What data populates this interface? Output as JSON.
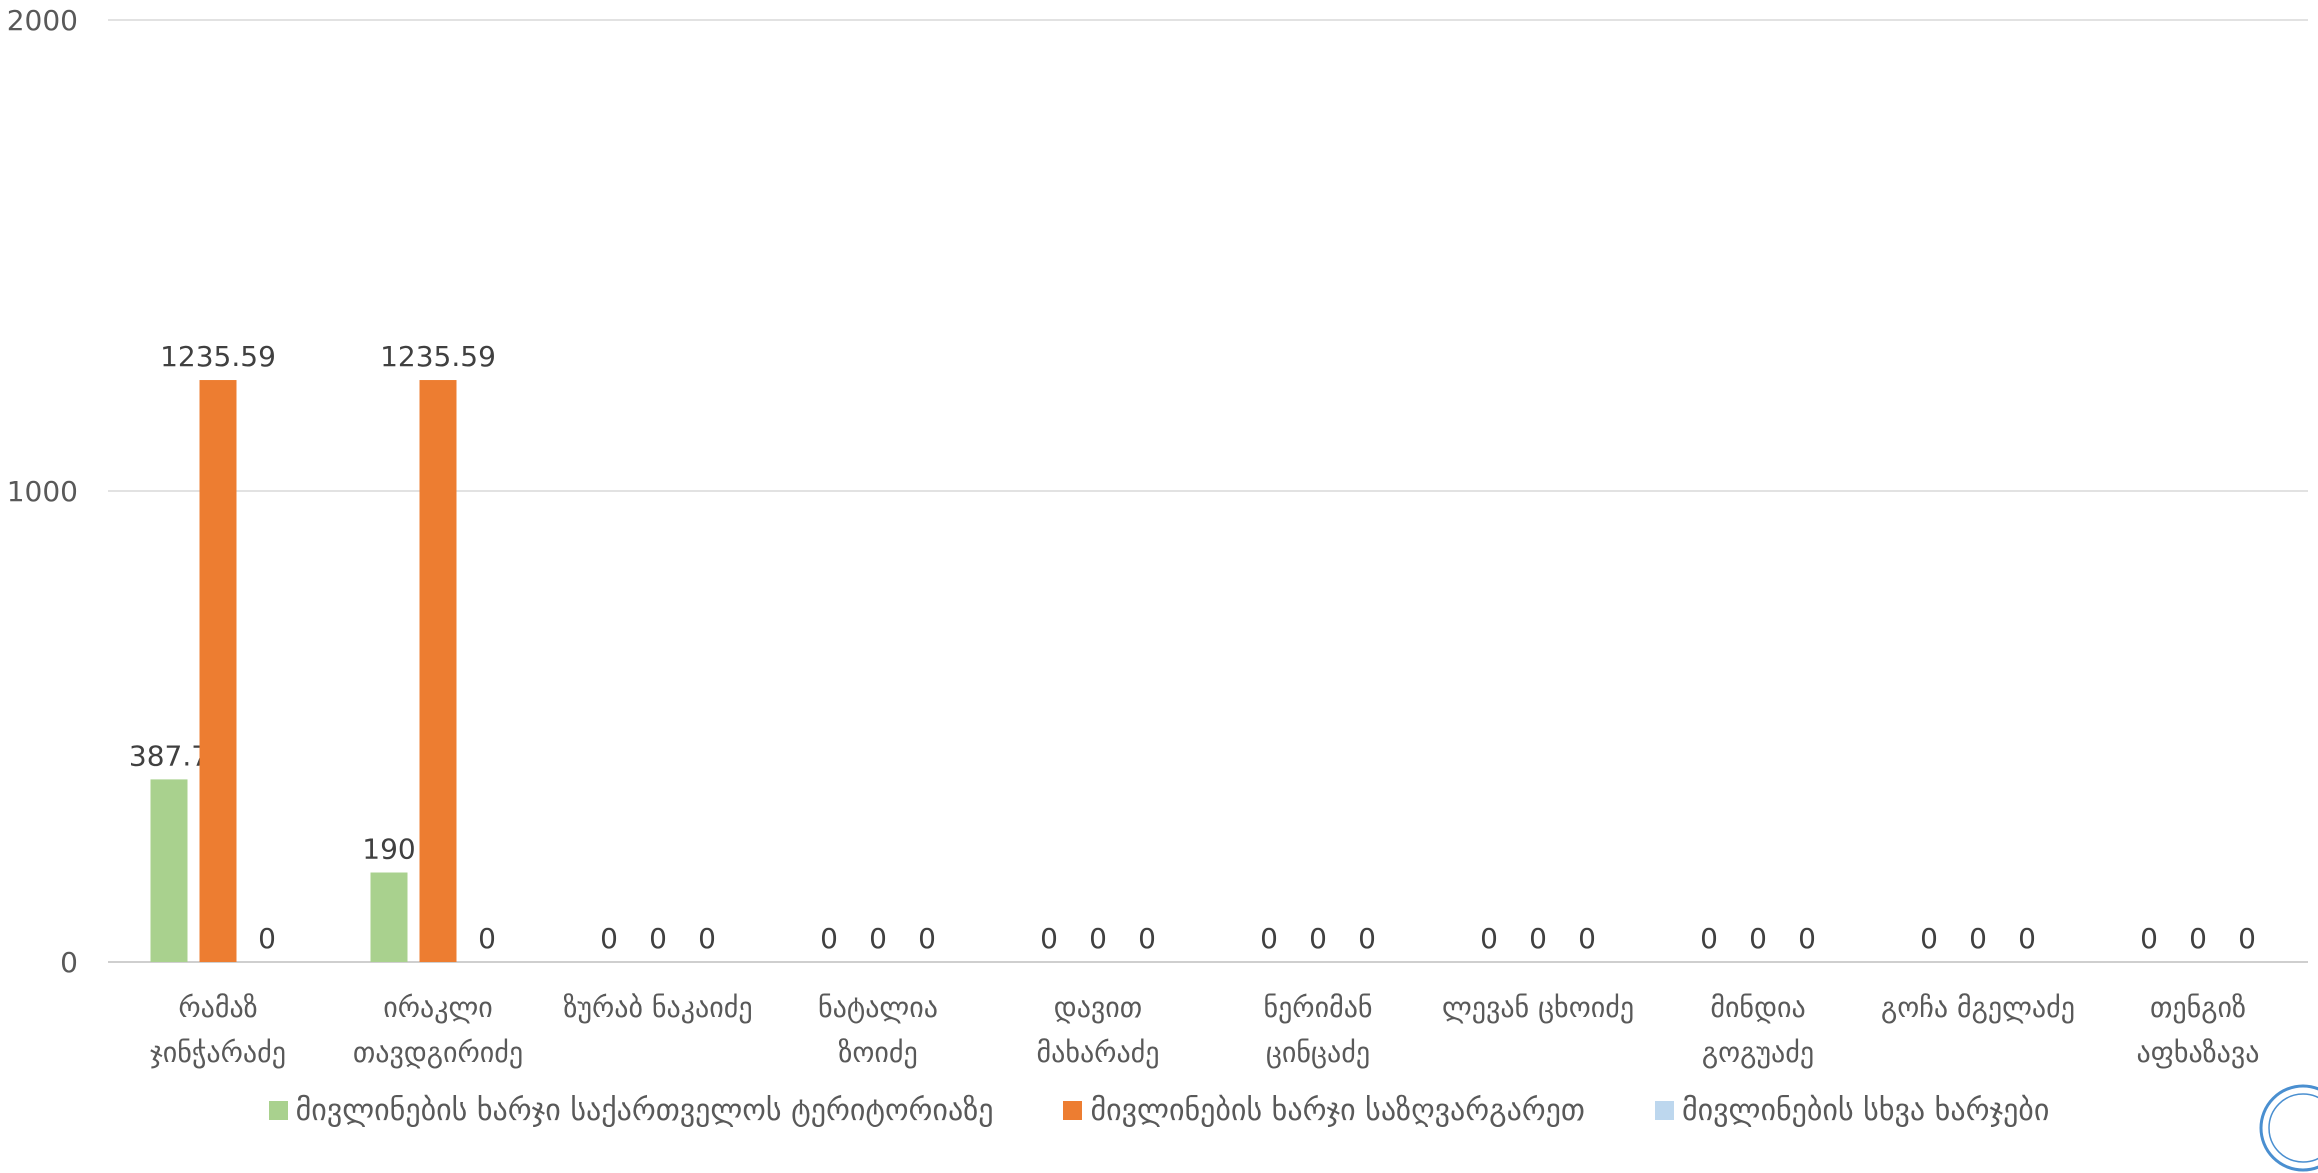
{
  "chart_data": {
    "type": "bar",
    "categories": [
      [
        "რამაზ",
        "ჯინჭარაძე"
      ],
      [
        "ირაკლი",
        "თავდგირიძე"
      ],
      [
        "ზურაბ ნაკაიძე"
      ],
      [
        "ნატალია",
        "ზოიძე"
      ],
      [
        "დავით",
        "მახარაძე"
      ],
      [
        "ნერიმან",
        "ცინცაძე"
      ],
      [
        "ლევან ცხოიძე"
      ],
      [
        "მინდია",
        "გოგუაძე"
      ],
      [
        "გოჩა მგელაძე"
      ],
      [
        "თენგიზ",
        "აფხაზავა"
      ]
    ],
    "series": [
      {
        "name": "მივლინების ხარჯი საქართველოს ტერიტორიაზე",
        "color": "#a9d18e",
        "values": [
          387.7,
          190,
          0,
          0,
          0,
          0,
          0,
          0,
          0,
          0
        ]
      },
      {
        "name": "მივლინების ხარჯი საზღვარგარეთ",
        "color": "#ed7d31",
        "values": [
          1235.59,
          1235.59,
          0,
          0,
          0,
          0,
          0,
          0,
          0,
          0
        ]
      },
      {
        "name": "მივლინების სხვა ხარჯები",
        "color": "#bdd7ee",
        "values": [
          0,
          0,
          0,
          0,
          0,
          0,
          0,
          0,
          0,
          0
        ]
      }
    ],
    "ylim": [
      0,
      2000
    ],
    "yticks": [
      0,
      1000,
      2000
    ],
    "grid": true,
    "legend_position": "bottom"
  }
}
